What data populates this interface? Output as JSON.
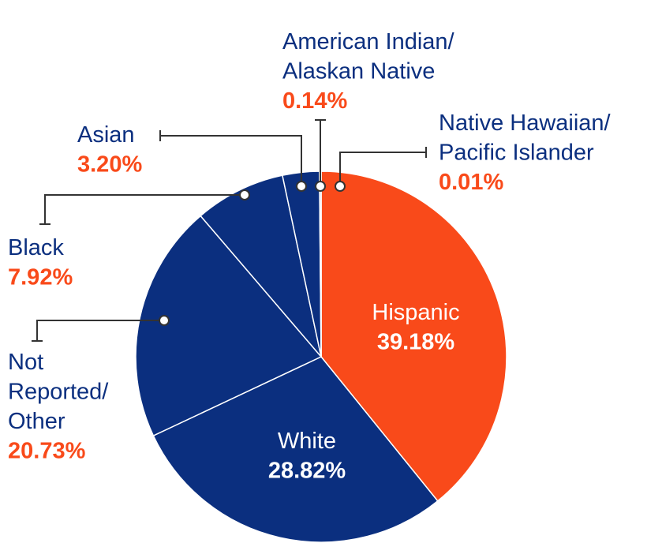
{
  "chart_data": {
    "type": "pie",
    "categories": [
      "Hispanic",
      "White",
      "Not\nReported/\nOther",
      "Black",
      "Asian",
      "American Indian/\nAlaskan Native",
      "Native Hawaiian/\nPacific Islander"
    ],
    "values": [
      39.18,
      28.82,
      20.73,
      7.92,
      3.2,
      0.14,
      0.01
    ],
    "value_labels": [
      "39.18%",
      "28.82%",
      "20.73%",
      "7.92%",
      "3.20%",
      "0.14%",
      "0.01%"
    ],
    "colors": [
      "#f94a1a",
      "#0b2f7f",
      "#0b2f7f",
      "#0b2f7f",
      "#0b2f7f",
      "#0b2f7f",
      "#0b2f7f"
    ]
  }
}
